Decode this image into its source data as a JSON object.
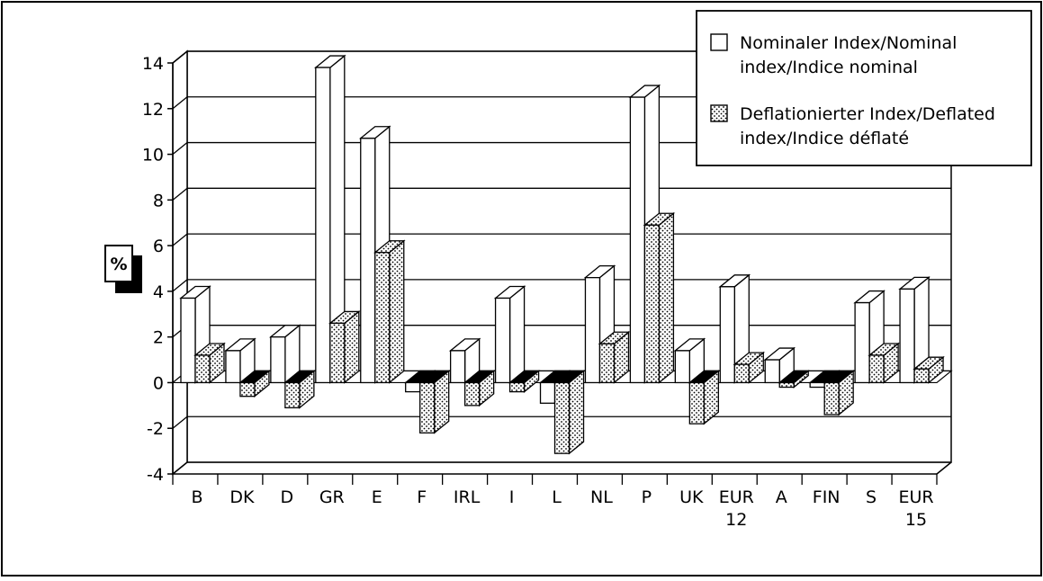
{
  "chart_data": {
    "type": "bar",
    "title": "",
    "xlabel": "",
    "ylabel": "%",
    "ylim": [
      -4,
      14
    ],
    "yticks": [
      "14",
      "12",
      "10",
      "8",
      "6",
      "4",
      "2",
      "0",
      "-2",
      "-4"
    ],
    "grid": true,
    "legend_position": "top-right",
    "categories": [
      [
        "B"
      ],
      [
        "DK"
      ],
      [
        "D"
      ],
      [
        "GR"
      ],
      [
        "E"
      ],
      [
        "F"
      ],
      [
        "IRL"
      ],
      [
        "I"
      ],
      [
        "L"
      ],
      [
        "NL"
      ],
      [
        "P"
      ],
      [
        "UK"
      ],
      [
        "EUR",
        "12"
      ],
      [
        "A"
      ],
      [
        "FIN"
      ],
      [
        "S"
      ],
      [
        "EUR",
        "15"
      ]
    ],
    "series": [
      {
        "name": [
          "Nominaler Index/Nominal",
          "index/Indice nominal"
        ],
        "pattern": "white",
        "values": [
          3.7,
          1.4,
          2.0,
          13.8,
          10.7,
          -0.4,
          1.4,
          3.7,
          -0.9,
          4.6,
          12.5,
          1.4,
          4.2,
          1.0,
          -0.2,
          3.5,
          4.1
        ]
      },
      {
        "name": [
          "Deflationierter Index/Deflated",
          "index/Indice déflaté"
        ],
        "pattern": "dotted",
        "values": [
          1.2,
          -0.6,
          -1.1,
          2.6,
          5.7,
          -2.2,
          -1.0,
          -0.4,
          -3.1,
          1.7,
          6.9,
          -1.8,
          0.8,
          -0.2,
          -1.4,
          1.2,
          0.6
        ]
      }
    ],
    "colors": {
      "negative_top": "#000000",
      "background": "#ffffff",
      "stroke": "#000000"
    }
  }
}
